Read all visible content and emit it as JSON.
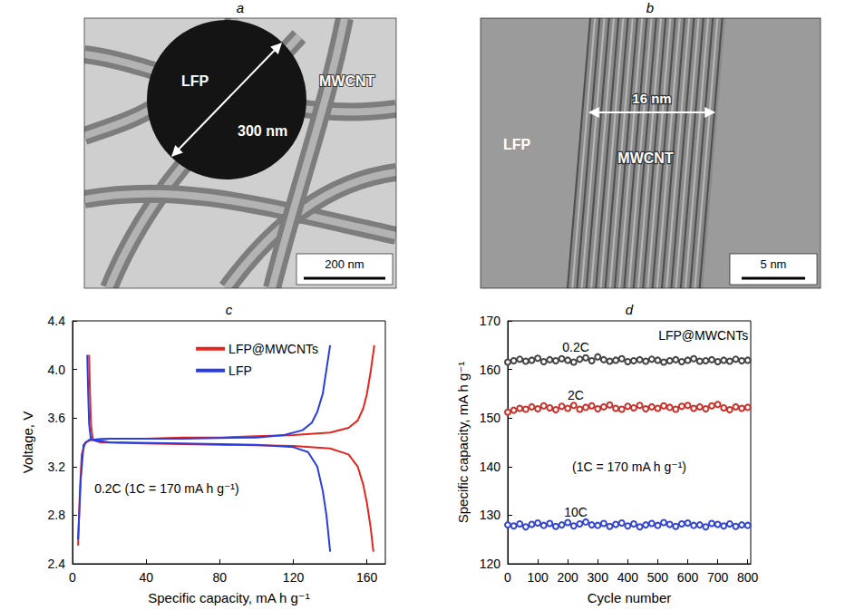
{
  "images": [
    {
      "panel": "a",
      "particle": "LFP",
      "diameter": "300 nm",
      "tubes": "MWCNT",
      "scale_bar": "200 nm"
    },
    {
      "panel": "b",
      "left": "LFP",
      "tube": "MWCNT",
      "wall_thickness": "16 nm",
      "scale_bar": "5 nm"
    }
  ],
  "chart_data": [
    {
      "type": "line",
      "title": "c",
      "xlabel": "Specific capacity, mA h g⁻¹",
      "ylabel": "Voltage, V",
      "xlim": [
        0,
        170
      ],
      "xticks": [
        0,
        40,
        80,
        120,
        160
      ],
      "ylim": [
        2.4,
        4.4
      ],
      "yticks": [
        2.4,
        2.8,
        3.2,
        3.6,
        {
          "value": 4,
          "label": "4.0"
        },
        4.4
      ],
      "grid": false,
      "legend": "top",
      "annotations": [
        "0.2C (1C = 170 mA h g⁻¹)"
      ],
      "series": [
        {
          "name": "LFP@MWCNTs",
          "color": "#e3261e",
          "x": [
            3,
            4,
            5,
            7,
            10,
            20,
            40,
            60,
            80,
            100,
            120,
            140,
            150,
            155,
            158,
            160,
            162,
            164,
            null,
            9,
            9.5,
            10,
            11,
            15,
            40,
            80,
            120,
            140,
            150,
            155,
            158,
            160,
            162,
            163.5
          ],
          "values": [
            2.55,
            3.0,
            3.3,
            3.4,
            3.42,
            3.43,
            3.43,
            3.44,
            3.44,
            3.45,
            3.46,
            3.48,
            3.52,
            3.58,
            3.68,
            3.8,
            3.98,
            4.2,
            null,
            4.12,
            3.8,
            3.55,
            3.42,
            3.4,
            3.39,
            3.38,
            3.37,
            3.35,
            3.3,
            3.2,
            3.05,
            2.9,
            2.7,
            2.5
          ]
        },
        {
          "name": "LFP",
          "color": "#2a3de0",
          "x": [
            3,
            4.5,
            6,
            9,
            20,
            60,
            100,
            115,
            125,
            130,
            133,
            136,
            138,
            140,
            null,
            8,
            8.5,
            9,
            10,
            20,
            60,
            100,
            120,
            128,
            133,
            136,
            138,
            140
          ],
          "values": [
            2.6,
            3.1,
            3.38,
            3.42,
            3.43,
            3.43,
            3.44,
            3.46,
            3.5,
            3.56,
            3.65,
            3.8,
            4.0,
            4.2,
            null,
            4.12,
            3.8,
            3.55,
            3.42,
            3.4,
            3.39,
            3.38,
            3.36,
            3.32,
            3.2,
            3.0,
            2.8,
            2.5
          ]
        }
      ]
    },
    {
      "type": "line",
      "title": "d",
      "marker": "circle",
      "xlabel": "Cycle number",
      "ylabel": "Specific capacity, mA h g⁻¹",
      "xlim": [
        0,
        810
      ],
      "xticks": [
        0,
        100,
        200,
        300,
        400,
        500,
        600,
        700,
        800
      ],
      "ylim": [
        120,
        170
      ],
      "yticks": [
        120,
        130,
        140,
        150,
        160,
        170
      ],
      "grid": false,
      "annotations": [
        "LFP@MWCNTs",
        "(1C = 170 mA h g⁻¹)"
      ],
      "x": [
        0,
        20,
        40,
        60,
        80,
        100,
        120,
        140,
        160,
        180,
        200,
        220,
        240,
        260,
        280,
        300,
        320,
        340,
        360,
        380,
        400,
        420,
        440,
        460,
        480,
        500,
        520,
        540,
        560,
        580,
        600,
        620,
        640,
        660,
        680,
        700,
        720,
        740,
        760,
        780,
        800
      ],
      "series": [
        {
          "name": "0.2C",
          "color": "#444444",
          "values": [
            161.5,
            161.8,
            162.1,
            161.7,
            161.9,
            162.3,
            161.6,
            162.0,
            161.8,
            162.2,
            161.9,
            161.5,
            162.1,
            162.4,
            161.8,
            162.6,
            162.0,
            161.7,
            161.9,
            162.2,
            161.6,
            161.8,
            162.0,
            161.7,
            162.1,
            161.9,
            161.5,
            161.8,
            162.0,
            161.6,
            161.9,
            162.2,
            161.7,
            161.8,
            162.0,
            161.6,
            161.9,
            161.7,
            162.1,
            161.8,
            161.9
          ]
        },
        {
          "name": "2C",
          "color": "#c8322b",
          "values": [
            151.2,
            151.6,
            152.0,
            151.8,
            152.3,
            151.9,
            152.5,
            152.1,
            151.7,
            152.4,
            152.0,
            152.6,
            151.8,
            152.2,
            152.5,
            151.9,
            152.3,
            152.7,
            152.0,
            151.8,
            152.4,
            152.1,
            152.6,
            151.9,
            152.3,
            152.0,
            152.5,
            152.2,
            151.8,
            152.4,
            152.6,
            152.0,
            152.3,
            151.9,
            152.5,
            152.8,
            152.1,
            151.7,
            152.3,
            152.0,
            152.2
          ]
        },
        {
          "name": "10C",
          "color": "#3346d0",
          "values": [
            128.0,
            127.8,
            128.2,
            127.6,
            128.1,
            128.4,
            127.9,
            128.3,
            127.7,
            128.0,
            128.5,
            127.8,
            128.2,
            128.6,
            128.0,
            127.9,
            128.3,
            127.7,
            128.1,
            128.4,
            127.8,
            128.2,
            127.6,
            128.0,
            128.3,
            127.9,
            128.5,
            128.1,
            127.7,
            128.2,
            128.4,
            127.9,
            128.0,
            127.6,
            128.3,
            128.1,
            127.8,
            128.2,
            127.7,
            128.0,
            127.9
          ]
        }
      ]
    }
  ]
}
